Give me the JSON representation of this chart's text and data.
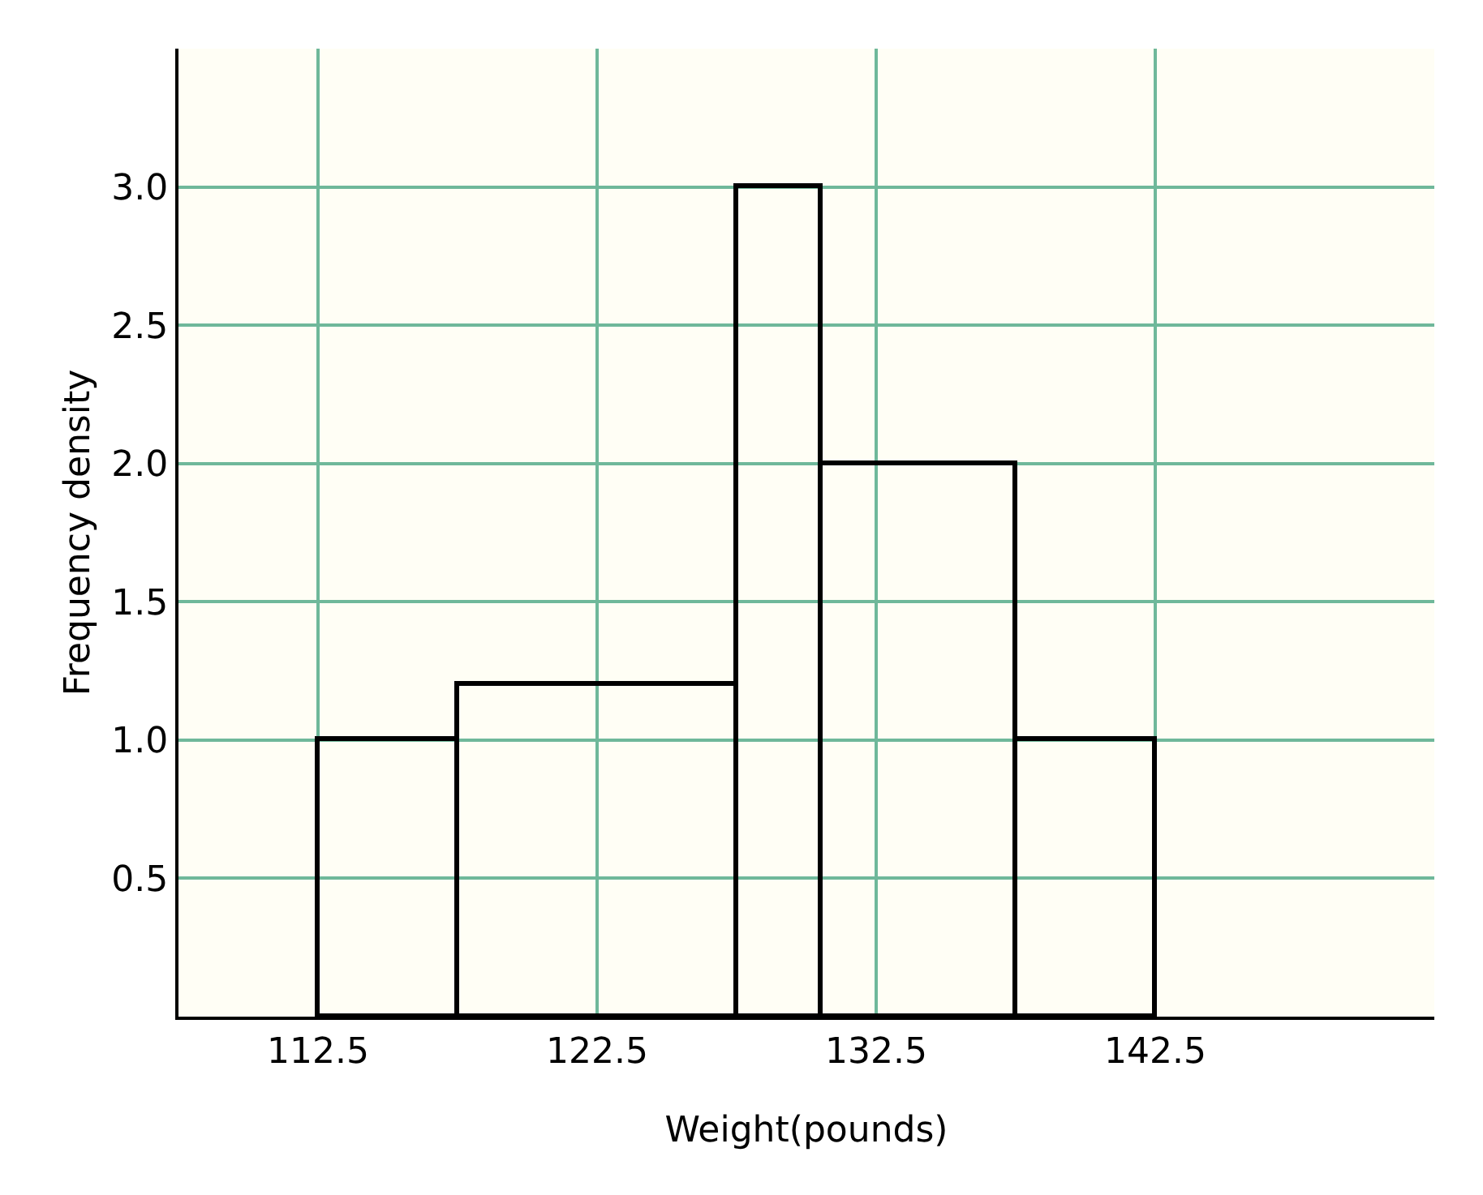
{
  "chart_data": {
    "type": "histogram",
    "xlabel": "Weight(pounds)",
    "ylabel": "Frequency density",
    "bins": [
      112.5,
      117.5,
      127.5,
      130.5,
      137.5,
      142.5
    ],
    "values": [
      1.0,
      1.2,
      3.0,
      2.0,
      1.0
    ],
    "color": "#000000",
    "xlim": [
      107.5,
      152.5
    ],
    "xticks": [
      112.5,
      122.5,
      132.5,
      142.5
    ],
    "ylim": [
      0,
      3.5
    ],
    "yticks": [
      0.5,
      {
        "value": 1,
        "label": "1.0"
      },
      1.5,
      {
        "value": 2,
        "label": "2.0"
      },
      2.5,
      {
        "value": 3,
        "label": "3.0"
      }
    ],
    "grid": true
  }
}
